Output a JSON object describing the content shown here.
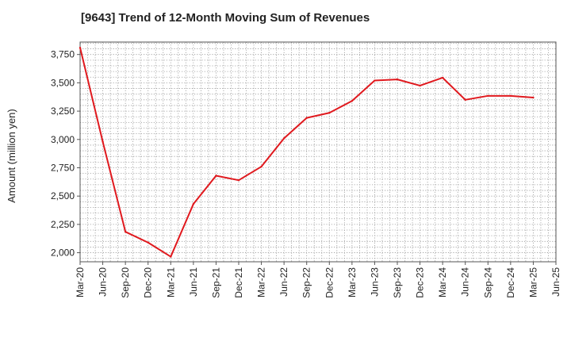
{
  "title": "[9643]  Trend of 12-Month Moving Sum of Revenues",
  "chart_data": {
    "type": "line",
    "title": "[9643]  Trend of 12-Month Moving Sum of Revenues",
    "xlabel": "",
    "ylabel": "Amount (million yen)",
    "x_tick_labels": [
      "Mar-20",
      "Jun-20",
      "Sep-20",
      "Dec-20",
      "Mar-21",
      "Jun-21",
      "Sep-21",
      "Dec-21",
      "Mar-22",
      "Jun-22",
      "Sep-22",
      "Dec-22",
      "Mar-23",
      "Jun-23",
      "Sep-23",
      "Dec-23",
      "Mar-24",
      "Jun-24",
      "Sep-24",
      "Dec-24",
      "Mar-25",
      "Jun-25"
    ],
    "y_ticks": [
      2000,
      2250,
      2500,
      2750,
      3000,
      3250,
      3500,
      3750
    ],
    "y_tick_labels": [
      "2,000",
      "2,250",
      "2,500",
      "2,750",
      "3,000",
      "3,250",
      "3,500",
      "3,750"
    ],
    "ylim": [
      1920,
      3860
    ],
    "grid": true,
    "series": [
      {
        "color": "#e0191e",
        "x": [
          "Mar-20",
          "Jun-20",
          "Sep-20",
          "Dec-20",
          "Mar-21",
          "Jun-21",
          "Sep-21",
          "Dec-21",
          "Mar-22",
          "Jun-22",
          "Sep-22",
          "Dec-22",
          "Mar-23",
          "Jun-23",
          "Sep-23",
          "Dec-23",
          "Mar-24",
          "Jun-24",
          "Sep-24",
          "Dec-24",
          "Mar-25"
        ],
        "values": [
          3810,
          2980,
          2185,
          2090,
          1965,
          2430,
          2680,
          2640,
          2760,
          3010,
          3190,
          3235,
          3340,
          3520,
          3530,
          3475,
          3545,
          3350,
          3385,
          3385,
          3370
        ]
      }
    ]
  }
}
